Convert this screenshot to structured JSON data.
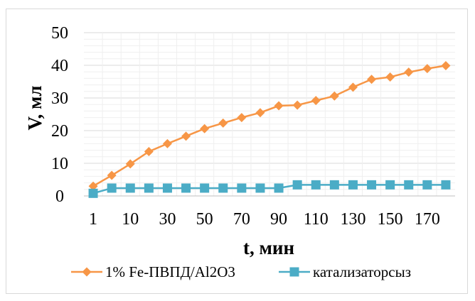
{
  "chart_data": {
    "type": "line",
    "xlabel": "t, мин",
    "ylabel": "V, мл",
    "ylim": [
      0,
      50
    ],
    "yticks": [
      0,
      10,
      20,
      30,
      40,
      50
    ],
    "x_tick_labels": [
      "1",
      "10",
      "30",
      "50",
      "70",
      "90",
      "110",
      "130",
      "150",
      "170"
    ],
    "grid": true,
    "legend_position": "bottom",
    "categories": [
      "1",
      "5",
      "10",
      "20",
      "30",
      "40",
      "50",
      "60",
      "70",
      "80",
      "90",
      "100",
      "110",
      "120",
      "130",
      "140",
      "150",
      "160",
      "170",
      "180"
    ],
    "series": [
      {
        "name": "1% Fe-ПВПД/Al2O3",
        "color": "#f79646",
        "marker": "diamond",
        "values": [
          3,
          6.3,
          9.8,
          13.6,
          16,
          18.3,
          20.6,
          22.3,
          24,
          25.5,
          27.6,
          27.8,
          29.2,
          30.6,
          33.3,
          35.7,
          36.4,
          37.9,
          39,
          39.9
        ]
      },
      {
        "name": "катализаторсыз",
        "color": "#4bacc6",
        "marker": "square",
        "values": [
          0.8,
          2.4,
          2.4,
          2.4,
          2.4,
          2.4,
          2.4,
          2.4,
          2.4,
          2.4,
          2.4,
          3.4,
          3.4,
          3.4,
          3.4,
          3.4,
          3.4,
          3.4,
          3.4,
          3.4
        ]
      }
    ]
  }
}
